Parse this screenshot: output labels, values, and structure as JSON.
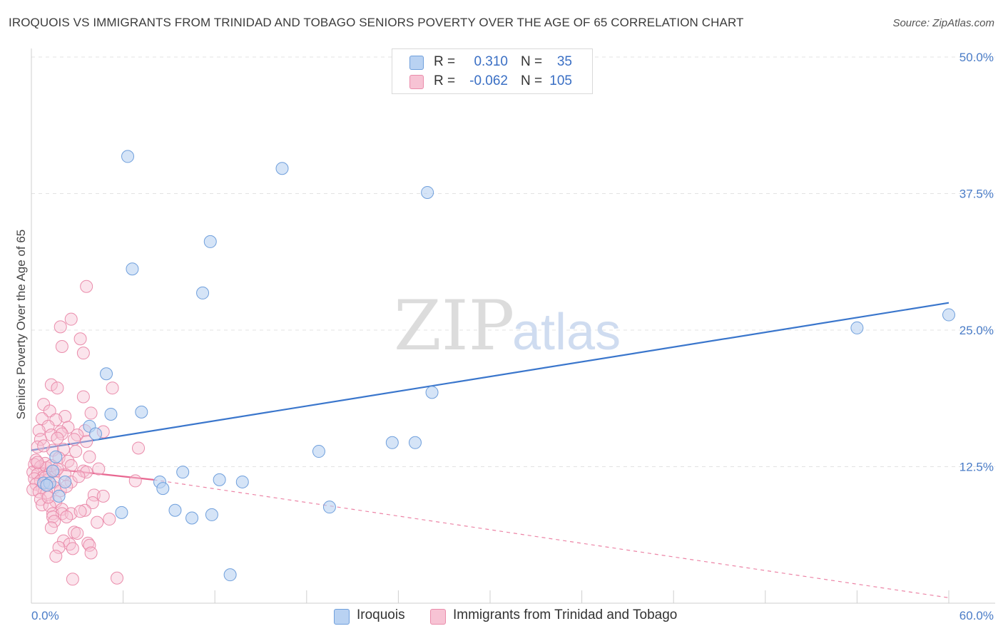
{
  "header": {
    "title": "IROQUOIS VS IMMIGRANTS FROM TRINIDAD AND TOBAGO SENIORS POVERTY OVER THE AGE OF 65 CORRELATION CHART",
    "source": "Source: ZipAtlas.com"
  },
  "watermark": {
    "zip": "ZIP",
    "atlas": "atlas"
  },
  "legend": {
    "rows": [
      {
        "r_label": "R =",
        "r_value": "0.310",
        "n_label": "N =",
        "n_value": "35"
      },
      {
        "r_label": "R =",
        "r_value": "-0.062",
        "n_label": "N =",
        "n_value": "105"
      }
    ]
  },
  "bottom_legend": {
    "series1": "Iroquois",
    "series2": "Immigrants from Trinidad and Tobago"
  },
  "colors": {
    "series1_fill": "#b9d2f2",
    "series1_stroke": "#6f9fdc",
    "series1_line": "#3a76cc",
    "series2_fill": "#f7c3d4",
    "series2_stroke": "#ea8cab",
    "series2_line": "#e86690",
    "tick_text": "#4a7cc7",
    "grid": "#e3e3e3"
  },
  "chart_data": {
    "type": "scatter",
    "title": "IROQUOIS VS IMMIGRANTS FROM TRINIDAD AND TOBAGO SENIORS POVERTY OVER THE AGE OF 65 CORRELATION CHART",
    "xlabel": "",
    "ylabel": "Seniors Poverty Over the Age of 65",
    "xlim": [
      0,
      60
    ],
    "ylim": [
      0,
      50
    ],
    "x_tick_labels": [
      "0.0%",
      "60.0%"
    ],
    "y_ticks": [
      12.5,
      25.0,
      37.5,
      50.0
    ],
    "y_tick_labels": [
      "12.5%",
      "25.0%",
      "37.5%",
      "50.0%"
    ],
    "grid": true,
    "legend_position": "top-center",
    "series": [
      {
        "name": "Iroquois",
        "R": 0.31,
        "N": 35,
        "trend": {
          "x": [
            0,
            60
          ],
          "y": [
            14.0,
            27.5
          ],
          "style": "solid"
        },
        "points": [
          [
            6.3,
            40.9
          ],
          [
            16.4,
            39.8
          ],
          [
            25.9,
            37.6
          ],
          [
            11.7,
            33.1
          ],
          [
            6.6,
            30.6
          ],
          [
            11.2,
            28.4
          ],
          [
            60.0,
            26.4
          ],
          [
            54.0,
            25.2
          ],
          [
            4.9,
            21.0
          ],
          [
            26.2,
            19.3
          ],
          [
            5.2,
            17.3
          ],
          [
            7.2,
            17.5
          ],
          [
            3.8,
            16.2
          ],
          [
            4.2,
            15.5
          ],
          [
            23.6,
            14.7
          ],
          [
            25.1,
            14.7
          ],
          [
            1.6,
            13.4
          ],
          [
            18.8,
            13.9
          ],
          [
            9.9,
            12.0
          ],
          [
            12.3,
            11.3
          ],
          [
            13.8,
            11.1
          ],
          [
            0.8,
            11.0
          ],
          [
            2.2,
            11.1
          ],
          [
            8.4,
            11.1
          ],
          [
            8.6,
            10.5
          ],
          [
            1.2,
            11.0
          ],
          [
            1.0,
            10.8
          ],
          [
            1.8,
            9.8
          ],
          [
            19.5,
            8.8
          ],
          [
            5.9,
            8.3
          ],
          [
            9.4,
            8.5
          ],
          [
            10.5,
            7.8
          ],
          [
            11.8,
            8.1
          ],
          [
            13.0,
            2.6
          ],
          [
            1.4,
            12.1
          ]
        ]
      },
      {
        "name": "Immigrants from Trinidad and Tobago",
        "R": -0.062,
        "N": 105,
        "trend": {
          "x": [
            0,
            8
          ],
          "y": [
            12.5,
            11.3
          ],
          "style": "solid",
          "extended_x": [
            8,
            60
          ],
          "extended_y": [
            11.3,
            0.5
          ],
          "extended_style": "dashed"
        },
        "points": [
          [
            3.6,
            29.0
          ],
          [
            2.6,
            26.0
          ],
          [
            1.9,
            25.3
          ],
          [
            3.2,
            24.2
          ],
          [
            2.0,
            23.5
          ],
          [
            3.4,
            22.9
          ],
          [
            1.3,
            20.0
          ],
          [
            1.7,
            19.7
          ],
          [
            5.3,
            19.7
          ],
          [
            3.4,
            18.9
          ],
          [
            0.8,
            18.2
          ],
          [
            1.2,
            17.6
          ],
          [
            3.9,
            17.4
          ],
          [
            2.2,
            17.1
          ],
          [
            1.6,
            16.8
          ],
          [
            0.7,
            16.9
          ],
          [
            1.1,
            16.2
          ],
          [
            2.4,
            16.1
          ],
          [
            0.5,
            15.8
          ],
          [
            1.9,
            15.7
          ],
          [
            3.5,
            15.8
          ],
          [
            4.7,
            15.7
          ],
          [
            1.3,
            15.4
          ],
          [
            2.0,
            15.5
          ],
          [
            3.0,
            15.4
          ],
          [
            0.6,
            15.0
          ],
          [
            1.7,
            15.1
          ],
          [
            2.8,
            15.0
          ],
          [
            3.6,
            14.8
          ],
          [
            0.4,
            14.3
          ],
          [
            1.4,
            14.0
          ],
          [
            2.1,
            14.1
          ],
          [
            7.0,
            14.2
          ],
          [
            0.3,
            13.1
          ],
          [
            0.9,
            12.8
          ],
          [
            1.8,
            13.3
          ],
          [
            2.4,
            13.0
          ],
          [
            3.8,
            13.4
          ],
          [
            0.2,
            12.7
          ],
          [
            0.6,
            12.5
          ],
          [
            1.0,
            12.4
          ],
          [
            1.6,
            12.1
          ],
          [
            2.6,
            12.6
          ],
          [
            3.4,
            12.1
          ],
          [
            0.1,
            12.0
          ],
          [
            0.4,
            11.8
          ],
          [
            0.8,
            11.6
          ],
          [
            1.2,
            11.9
          ],
          [
            2.2,
            11.8
          ],
          [
            3.6,
            12.0
          ],
          [
            0.2,
            11.4
          ],
          [
            0.6,
            11.2
          ],
          [
            1.1,
            11.3
          ],
          [
            1.5,
            11.1
          ],
          [
            2.6,
            11.1
          ],
          [
            6.8,
            11.2
          ],
          [
            0.3,
            10.9
          ],
          [
            0.7,
            10.6
          ],
          [
            1.0,
            10.8
          ],
          [
            1.5,
            10.6
          ],
          [
            0.1,
            10.4
          ],
          [
            0.5,
            10.2
          ],
          [
            1.0,
            10.1
          ],
          [
            1.9,
            10.3
          ],
          [
            4.1,
            9.9
          ],
          [
            4.7,
            9.8
          ],
          [
            0.6,
            9.5
          ],
          [
            1.6,
            9.3
          ],
          [
            4.0,
            9.2
          ],
          [
            0.7,
            9.0
          ],
          [
            1.2,
            8.9
          ],
          [
            2.0,
            8.6
          ],
          [
            3.5,
            8.5
          ],
          [
            1.4,
            8.2
          ],
          [
            2.0,
            8.2
          ],
          [
            2.6,
            8.2
          ],
          [
            3.2,
            8.4
          ],
          [
            1.4,
            7.9
          ],
          [
            2.3,
            7.9
          ],
          [
            5.1,
            7.7
          ],
          [
            1.5,
            7.5
          ],
          [
            4.3,
            7.4
          ],
          [
            1.3,
            6.9
          ],
          [
            2.8,
            6.5
          ],
          [
            3.0,
            6.4
          ],
          [
            2.1,
            5.7
          ],
          [
            3.7,
            5.5
          ],
          [
            2.5,
            5.4
          ],
          [
            3.8,
            5.3
          ],
          [
            1.8,
            5.1
          ],
          [
            2.7,
            5.0
          ],
          [
            3.9,
            4.6
          ],
          [
            1.6,
            4.3
          ],
          [
            2.7,
            2.2
          ],
          [
            5.6,
            2.3
          ],
          [
            0.9,
            11.5
          ],
          [
            1.3,
            12.6
          ],
          [
            2.9,
            13.9
          ],
          [
            0.4,
            12.9
          ],
          [
            1.7,
            12.3
          ],
          [
            3.1,
            11.6
          ],
          [
            0.8,
            14.4
          ],
          [
            2.3,
            10.7
          ],
          [
            1.1,
            9.7
          ],
          [
            4.4,
            12.3
          ]
        ]
      }
    ]
  }
}
